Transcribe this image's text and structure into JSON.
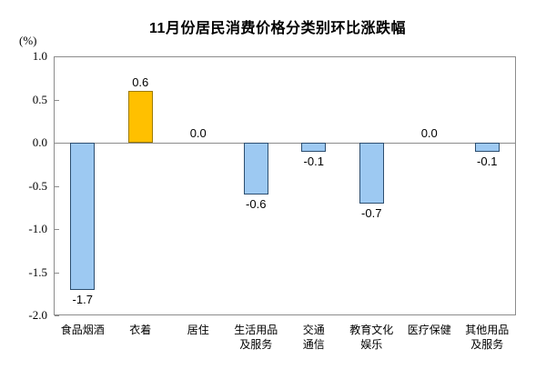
{
  "chart_data": {
    "type": "bar",
    "title": "11月份居民消费价格分类别环比涨跌幅",
    "unit": "(%)",
    "categories": [
      "食品烟酒",
      "衣着",
      "居住",
      "生活用品\n及服务",
      "交通\n通信",
      "教育文化\n娱乐",
      "医疗保健",
      "其他用品\n及服务"
    ],
    "values": [
      -1.7,
      0.6,
      0.0,
      -0.6,
      -0.1,
      -0.7,
      0.0,
      -0.1
    ],
    "value_labels": [
      "-1.7",
      "0.6",
      "0.0",
      "-0.6",
      "-0.1",
      "-0.7",
      "0.0",
      "-0.1"
    ],
    "ylabel": "",
    "xlabel": "",
    "ylim": [
      -2.0,
      1.0
    ],
    "yticks": [
      "1.0",
      "0.5",
      "0.0",
      "-0.5",
      "-1.0",
      "-1.5",
      "-2.0"
    ],
    "grid": false,
    "legend": "none",
    "highlight_index": 1,
    "colors": {
      "bar_fill": "#9DC9F2",
      "bar_border": "#2D4E6F",
      "highlight_fill": "#FFC000",
      "highlight_border": "#9C7A00",
      "axis": "#8C8C8C",
      "text": "#000000"
    }
  }
}
